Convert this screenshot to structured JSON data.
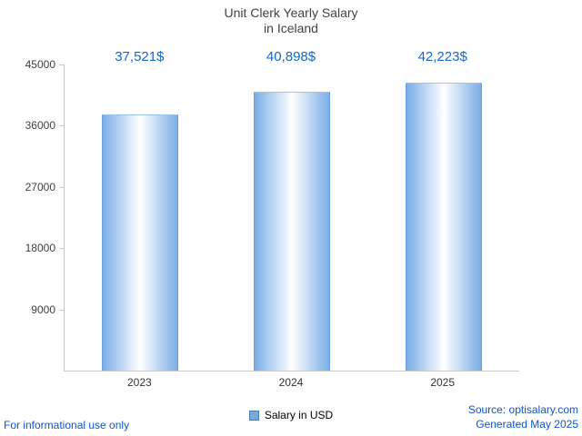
{
  "chart_data": {
    "type": "bar",
    "title": "Unit Clerk Yearly Salary in Iceland",
    "title_lines": [
      "Unit Clerk Yearly Salary",
      "in Iceland"
    ],
    "categories": [
      "2023",
      "2024",
      "2025"
    ],
    "values": [
      37521,
      40898,
      42223
    ],
    "value_labels": [
      "37,521$",
      "40,898$",
      "42,223$"
    ],
    "ylim": [
      0,
      45000
    ],
    "yticks": [
      45000,
      36000,
      27000,
      18000,
      9000
    ],
    "legend": [
      "Salary in USD"
    ],
    "legend_position": "bottom-center",
    "grid": false,
    "bar_edge_color": "#6ca0e0",
    "bar_gradient": [
      "#7aade6",
      "#ffffff",
      "#7aade6"
    ],
    "value_label_color": "#1566d0",
    "axis_color": "#c9c9c9"
  },
  "footer": {
    "left": "For informational use only",
    "source": "Source: optisalary.com",
    "generated": "Generated May 2025"
  }
}
